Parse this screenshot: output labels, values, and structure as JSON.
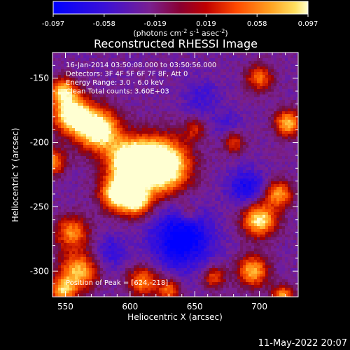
{
  "colorbar": {
    "ticks": [
      "-0.097",
      "-0.058",
      "-0.019",
      "0.019",
      "0.058",
      "0.097"
    ],
    "units_prefix": "(photons cm",
    "units_exp1": "-2",
    "units_mid": " s",
    "units_exp2": "-1",
    "units_mid2": " asec",
    "units_exp3": "-2",
    "units_suffix": ")"
  },
  "colors": {
    "background": "#000000",
    "axes": "#ffffff",
    "colormap": [
      "#0000ff",
      "#3a10d8",
      "#6a20b0",
      "#7a2090",
      "#8a1050",
      "#a00000",
      "#d82000",
      "#ff5a00",
      "#ff9a20",
      "#ffd840",
      "#ffffc8"
    ]
  },
  "chart_data": {
    "type": "heatmap",
    "title": "Reconstructed RHESSI Image",
    "xlabel": "Heliocentric X (arcsec)",
    "ylabel": "Heliocentric Y (arcsec)",
    "x_ticks": [
      550,
      600,
      650,
      700
    ],
    "y_ticks": [
      -150,
      -200,
      -250,
      -300
    ],
    "xlim": [
      540,
      730
    ],
    "ylim": [
      -320,
      -130
    ],
    "color_range": [
      -0.097,
      0.097
    ],
    "info_lines": [
      "16-Jan-2014 03:50:08.000 to 03:50:56.000",
      "Detectors: 3F 4F 5F 6F 7F 8F, Att 0",
      "Energy Range: 3.0 - 6.0 keV",
      "Clean    Total counts: 3.60E+03"
    ],
    "peak_label": "Position of Peak = [624,-218]",
    "peak": [
      624,
      -218
    ]
  },
  "timestamp": "11-May-2022 20:07"
}
